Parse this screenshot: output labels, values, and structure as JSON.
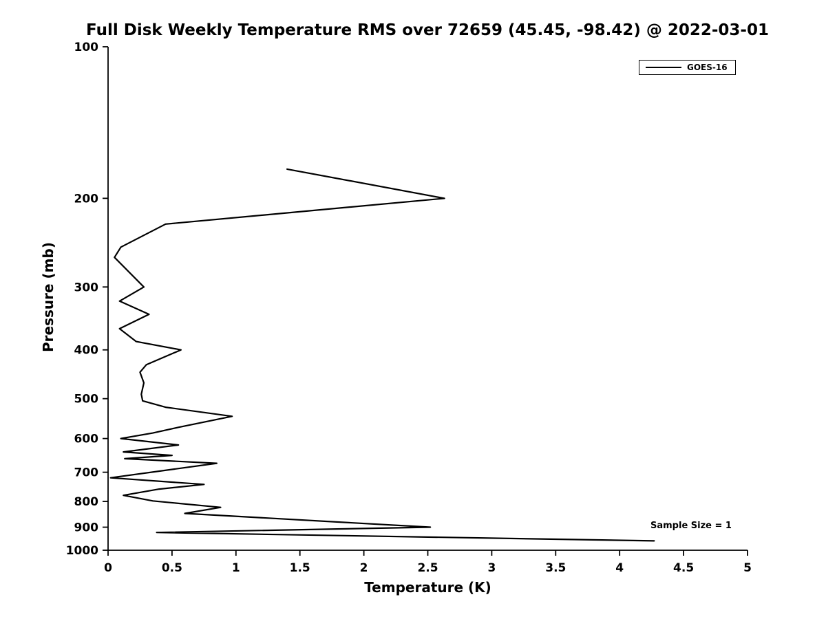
{
  "chart_data": {
    "type": "line",
    "title": "Full Disk Weekly Temperature RMS over 72659 (45.45, -98.42) @ 2022-03-01",
    "xlabel": "Temperature (K)",
    "ylabel": "Pressure (mb)",
    "xlim": [
      0,
      5
    ],
    "ylim": [
      100,
      1000
    ],
    "x_scale": "linear",
    "y_scale": "log",
    "y_inverted": true,
    "grid": false,
    "axis_color": "#000000",
    "x_tick_values": [
      0,
      0.5,
      1,
      1.5,
      2,
      2.5,
      3,
      3.5,
      4,
      4.5,
      5
    ],
    "x_tick_labels": [
      "0",
      "0.5",
      "1",
      "1.5",
      "2",
      "2.5",
      "3",
      "3.5",
      "4",
      "4.5",
      "5"
    ],
    "y_tick_values": [
      100,
      200,
      300,
      400,
      500,
      600,
      700,
      800,
      900,
      1000
    ],
    "y_tick_labels": [
      "100",
      "200",
      "300",
      "400",
      "500",
      "600",
      "700",
      "800",
      "900",
      "1000"
    ],
    "annotation": "Sample Size = 1",
    "legend": {
      "position": "top-right",
      "entries": [
        {
          "label": "GOES-16",
          "color": "#000000"
        }
      ]
    },
    "series": [
      {
        "name": "GOES-16",
        "color": "#000000",
        "points": [
          {
            "temp": 1.4,
            "pressure": 175
          },
          {
            "temp": 2.63,
            "pressure": 200
          },
          {
            "temp": 0.45,
            "pressure": 225
          },
          {
            "temp": 0.1,
            "pressure": 250
          },
          {
            "temp": 0.05,
            "pressure": 262
          },
          {
            "temp": 0.28,
            "pressure": 300
          },
          {
            "temp": 0.09,
            "pressure": 320
          },
          {
            "temp": 0.32,
            "pressure": 340
          },
          {
            "temp": 0.09,
            "pressure": 363
          },
          {
            "temp": 0.22,
            "pressure": 385
          },
          {
            "temp": 0.57,
            "pressure": 400
          },
          {
            "temp": 0.3,
            "pressure": 428
          },
          {
            "temp": 0.25,
            "pressure": 443
          },
          {
            "temp": 0.28,
            "pressure": 465
          },
          {
            "temp": 0.26,
            "pressure": 490
          },
          {
            "temp": 0.27,
            "pressure": 505
          },
          {
            "temp": 0.45,
            "pressure": 520
          },
          {
            "temp": 0.97,
            "pressure": 542
          },
          {
            "temp": 0.55,
            "pressure": 570
          },
          {
            "temp": 0.35,
            "pressure": 585
          },
          {
            "temp": 0.1,
            "pressure": 600
          },
          {
            "temp": 0.55,
            "pressure": 618
          },
          {
            "temp": 0.12,
            "pressure": 638
          },
          {
            "temp": 0.5,
            "pressure": 648
          },
          {
            "temp": 0.13,
            "pressure": 658
          },
          {
            "temp": 0.85,
            "pressure": 672
          },
          {
            "temp": 0.52,
            "pressure": 690
          },
          {
            "temp": 0.02,
            "pressure": 718
          },
          {
            "temp": 0.75,
            "pressure": 740
          },
          {
            "temp": 0.4,
            "pressure": 756
          },
          {
            "temp": 0.12,
            "pressure": 778
          },
          {
            "temp": 0.35,
            "pressure": 798
          },
          {
            "temp": 0.88,
            "pressure": 822
          },
          {
            "temp": 0.6,
            "pressure": 845
          },
          {
            "temp": 2.52,
            "pressure": 900
          },
          {
            "temp": 0.38,
            "pressure": 922
          },
          {
            "temp": 4.27,
            "pressure": 958
          }
        ]
      }
    ]
  }
}
